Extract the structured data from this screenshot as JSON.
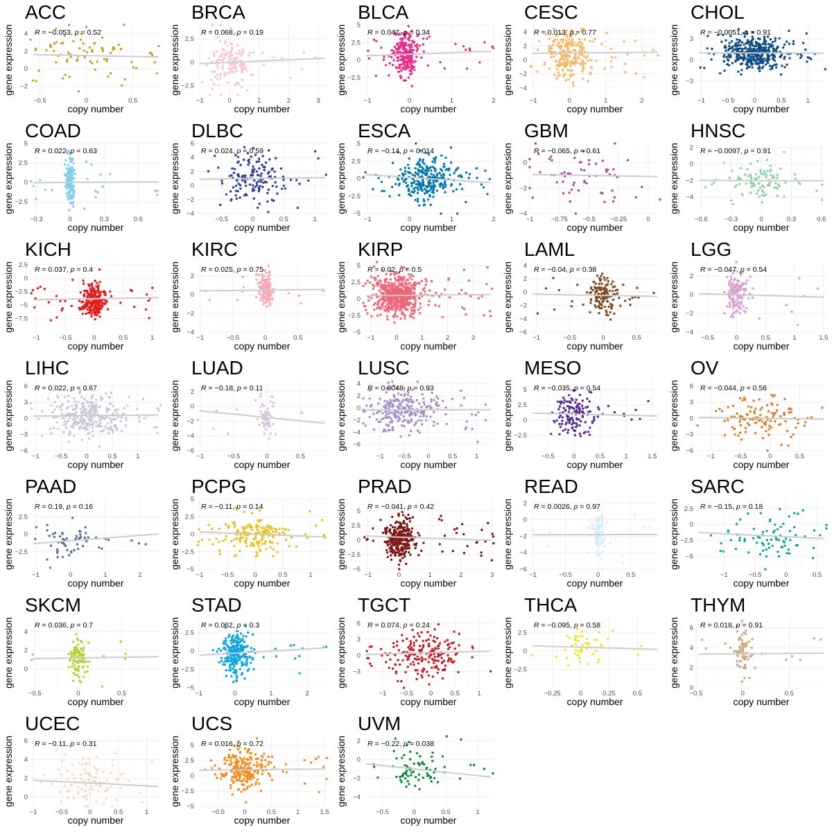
{
  "figure": {
    "x_label": "copy number",
    "y_label": "gene expression",
    "stat_prefix": "R = "
  },
  "chart_data": [
    {
      "type": "scatter",
      "title": "ACC",
      "color": "#C4A428",
      "r": -0.053,
      "p": "0.52",
      "n": 80,
      "xlim": [
        -0.6,
        0.8
      ],
      "ylim": [
        -3,
        5
      ],
      "xticks": [
        -0.5,
        0,
        0.5
      ],
      "yticks": [
        -2,
        0,
        2,
        4
      ],
      "x_center": 0.0,
      "x_spread": 0.3,
      "y_center": 1.5,
      "y_spread": 1.8
    },
    {
      "type": "scatter",
      "title": "BRCA",
      "color": "#F6C7D2",
      "r": 0.068,
      "p": "0.19",
      "n": 150,
      "xlim": [
        -1.1,
        3.3
      ],
      "ylim": [
        -3.5,
        4.0
      ],
      "xticks": [
        -1,
        0,
        1,
        2,
        3
      ],
      "yticks": [
        -2.5,
        0.0,
        2.5
      ],
      "x_center": 0.0,
      "x_spread": 0.4,
      "y_center": 0.0,
      "y_spread": 1.3
    },
    {
      "type": "scatter",
      "title": "BLCA",
      "color": "#E62D8B",
      "r": 0.047,
      "p": "0.34",
      "n": 250,
      "xlim": [
        -1.1,
        2.0
      ],
      "ylim": [
        -5,
        5
      ],
      "xticks": [
        -1,
        0,
        1,
        2
      ],
      "yticks": [
        -2.5,
        0.0,
        2.5,
        5.0
      ],
      "x_center": -0.1,
      "x_spread": 0.15,
      "y_center": 0.8,
      "y_spread": 1.5
    },
    {
      "type": "scatter",
      "title": "CESC",
      "color": "#F6B867",
      "r": 0.013,
      "p": "0.77",
      "n": 250,
      "xlim": [
        -1.1,
        2.5
      ],
      "ylim": [
        -5,
        5
      ],
      "xticks": [
        -1,
        0,
        1,
        2
      ],
      "yticks": [
        -4,
        -2,
        0,
        2,
        4
      ],
      "x_center": 0.0,
      "x_spread": 0.3,
      "y_center": 1.0,
      "y_spread": 1.6
    },
    {
      "type": "scatter",
      "title": "CHOL",
      "color": "#0E4C82",
      "r": -0.0051,
      "p": "0.91",
      "n": 400,
      "xlim": [
        -1.1,
        1.35
      ],
      "ylim": [
        -5,
        5
      ],
      "xticks": [
        -1.0,
        -0.5,
        0.0,
        0.5,
        1.0
      ],
      "yticks": [
        -3,
        0,
        3
      ],
      "x_center": 0.0,
      "x_spread": 0.3,
      "y_center": 1.0,
      "y_spread": 1.3
    },
    {
      "type": "scatter",
      "title": "COAD",
      "color": "#87CEEB",
      "r": 0.022,
      "p": "0.63",
      "n": 200,
      "xlim": [
        -0.35,
        0.8
      ],
      "ylim": [
        -4,
        5
      ],
      "xticks": [
        -0.3,
        0.0,
        0.3,
        0.6
      ],
      "yticks": [
        -2.5,
        0.0,
        2.5,
        5.0
      ],
      "x_center": 0.0,
      "x_spread": 0.02,
      "y_center": 0.0,
      "y_spread": 1.5
    },
    {
      "type": "scatter",
      "title": "DLBC",
      "color": "#2E3F94",
      "r": 0.024,
      "p": "0.59",
      "n": 150,
      "xlim": [
        -0.9,
        1.2
      ],
      "ylim": [
        -4,
        6
      ],
      "xticks": [
        -0.5,
        0.0,
        0.5,
        1.0
      ],
      "yticks": [
        -4,
        -2,
        0,
        2,
        4,
        6
      ],
      "x_center": 0.0,
      "x_spread": 0.25,
      "y_center": 1.0,
      "y_spread": 1.8
    },
    {
      "type": "scatter",
      "title": "ESCA",
      "color": "#0178A8",
      "r": -0.14,
      "p": "0.014",
      "n": 300,
      "xlim": [
        -1.1,
        2.0
      ],
      "ylim": [
        -5,
        5
      ],
      "xticks": [
        -1,
        0,
        1,
        2
      ],
      "yticks": [
        -5.0,
        -2.5,
        0.0,
        2.5,
        5.0
      ],
      "x_center": 0.4,
      "x_spread": 0.35,
      "y_center": 0.0,
      "y_spread": 1.5
    },
    {
      "type": "scatter",
      "title": "GBM",
      "color": "#AD47A6",
      "r": -0.065,
      "p": "0.61",
      "n": 60,
      "xlim": [
        -1.0,
        0.1
      ],
      "ylim": [
        -4,
        1.5
      ],
      "xticks": [
        -1.0,
        -0.75,
        -0.5,
        -0.25,
        0.0
      ],
      "yticks": [
        -4,
        -2,
        0
      ],
      "x_center": -0.55,
      "x_spread": 0.3,
      "y_center": -1.0,
      "y_spread": 1.2
    },
    {
      "type": "scatter",
      "title": "HNSC",
      "color": "#91D1A5",
      "r": -0.0097,
      "p": "0.91",
      "n": 100,
      "xlim": [
        -0.65,
        0.65
      ],
      "ylim": [
        -6,
        2.5
      ],
      "xticks": [
        -0.6,
        -0.3,
        0.0,
        0.3,
        0.6
      ],
      "yticks": [
        -4,
        -2,
        0,
        2
      ],
      "x_center": 0.0,
      "x_spread": 0.15,
      "y_center": -2.0,
      "y_spread": 1.2
    },
    {
      "type": "scatter",
      "title": "KICH",
      "color": "#E41A1C",
      "r": 0.037,
      "p": "0.4",
      "n": 250,
      "xlim": [
        -1.1,
        1.15
      ],
      "ylim": [
        -10,
        3
      ],
      "xticks": [
        -1.0,
        -0.5,
        0.0,
        0.5,
        1.0
      ],
      "yticks": [
        -7.5,
        -5.0,
        -2.5,
        0.0,
        2.5
      ],
      "x_center": 0.0,
      "x_spread": 0.1,
      "y_center": -3.8,
      "y_spread": 1.6
    },
    {
      "type": "scatter",
      "title": "KIRC",
      "color": "#F4A9B3",
      "r": 0.025,
      "p": "0.75",
      "n": 150,
      "xlim": [
        -1.05,
        0.95
      ],
      "ylim": [
        -4,
        3.5
      ],
      "xticks": [
        -1.0,
        -0.5,
        0.0,
        0.5
      ],
      "yticks": [
        -4,
        -2,
        0,
        2
      ],
      "x_center": 0.0,
      "x_spread": 0.05,
      "y_center": 0.5,
      "y_spread": 1.0
    },
    {
      "type": "scatter",
      "title": "KIRP",
      "color": "#EE6677",
      "r": 0.02,
      "p": "0.5",
      "n": 600,
      "xlim": [
        -1.3,
        3.8
      ],
      "ylim": [
        -5,
        5.5
      ],
      "xticks": [
        -1,
        0,
        1,
        2,
        3
      ],
      "yticks": [
        -5.0,
        -2.5,
        0.0,
        2.5,
        5.0
      ],
      "x_center": 0.0,
      "x_spread": 0.5,
      "y_center": 0.5,
      "y_spread": 1.6
    },
    {
      "type": "scatter",
      "title": "LAML",
      "color": "#7B4A1E",
      "r": -0.04,
      "p": "0.38",
      "n": 150,
      "xlim": [
        -1.1,
        0.85
      ],
      "ylim": [
        -6,
        4.5
      ],
      "xticks": [
        -1.0,
        -0.5,
        0.0,
        0.5
      ],
      "yticks": [
        -6,
        -4,
        -2,
        0,
        2,
        4
      ],
      "x_center": 0.0,
      "x_spread": 0.1,
      "y_center": -0.5,
      "y_spread": 1.4
    },
    {
      "type": "scatter",
      "title": "LGG",
      "color": "#D7A1C8",
      "r": -0.047,
      "p": "0.54",
      "n": 150,
      "xlim": [
        -0.7,
        1.55
      ],
      "ylim": [
        -4,
        3.5
      ],
      "xticks": [
        -0.5,
        0.0,
        0.5,
        1.0,
        1.5
      ],
      "yticks": [
        -4,
        -2,
        0,
        2
      ],
      "x_center": 0.0,
      "x_spread": 0.1,
      "y_center": 0.0,
      "y_spread": 1.2
    },
    {
      "type": "scatter",
      "title": "LIHC",
      "color": "#C8C8DC",
      "r": 0.022,
      "p": "0.67",
      "n": 300,
      "xlim": [
        -1.1,
        1.45
      ],
      "ylim": [
        -6,
        7
      ],
      "xticks": [
        -1.0,
        -0.5,
        0.0,
        0.5,
        1.0
      ],
      "yticks": [
        -6,
        -3,
        0,
        3,
        6
      ],
      "x_center": 0.0,
      "x_spread": 0.35,
      "y_center": 0.5,
      "y_spread": 2.0
    },
    {
      "type": "scatter",
      "title": "LUAD",
      "color": "#D2C2E2",
      "r": -0.18,
      "p": "0.11",
      "n": 60,
      "xlim": [
        -1.05,
        0.9
      ],
      "ylim": [
        -6,
        3.5
      ],
      "xticks": [
        -1.0,
        -0.5,
        0.0,
        0.5
      ],
      "yticks": [
        -6,
        -4,
        -2,
        0,
        2
      ],
      "x_center": 0.0,
      "x_spread": 0.05,
      "y_center": -1.5,
      "y_spread": 1.6
    },
    {
      "type": "scatter",
      "title": "LUSC",
      "color": "#A68FC6",
      "r": 0.0048,
      "p": "0.93",
      "n": 250,
      "xlim": [
        -1.35,
        1.35
      ],
      "ylim": [
        -7,
        4.5
      ],
      "xticks": [
        -1.0,
        -0.5,
        0.0,
        0.5,
        1.0
      ],
      "yticks": [
        -6,
        -4,
        -2,
        0,
        2,
        4
      ],
      "x_center": -0.5,
      "x_spread": 0.35,
      "y_center": -0.3,
      "y_spread": 1.8
    },
    {
      "type": "scatter",
      "title": "MESO",
      "color": "#5A2D91",
      "r": -0.035,
      "p": "0.54",
      "n": 150,
      "xlim": [
        -0.85,
        1.65
      ],
      "ylim": [
        -5,
        6.5
      ],
      "xticks": [
        -0.5,
        0.0,
        0.5,
        1.0,
        1.5
      ],
      "yticks": [
        -2.5,
        0.0,
        2.5,
        5.0
      ],
      "x_center": 0.0,
      "x_spread": 0.2,
      "y_center": 1.0,
      "y_spread": 1.8
    },
    {
      "type": "scatter",
      "title": "OV",
      "color": "#D97E27",
      "r": -0.044,
      "p": "0.56",
      "n": 120,
      "xlim": [
        -1.25,
        0.95
      ],
      "ylim": [
        -6,
        7
      ],
      "xticks": [
        -1.0,
        -0.5,
        0.0,
        0.5
      ],
      "yticks": [
        -6,
        -3,
        0,
        3,
        6
      ],
      "x_center": -0.1,
      "x_spread": 0.35,
      "y_center": 0.0,
      "y_spread": 2.0
    },
    {
      "type": "scatter",
      "title": "PAAD",
      "color": "#5B6F9E",
      "r": 0.19,
      "p": "0.16",
      "n": 60,
      "xlim": [
        -1.15,
        2.6
      ],
      "ylim": [
        -5,
        5
      ],
      "xticks": [
        -1,
        0,
        1,
        2
      ],
      "yticks": [
        -2.5,
        0.0,
        2.5
      ],
      "x_center": -0.2,
      "x_spread": 0.4,
      "y_center": -1.0,
      "y_spread": 1.3
    },
    {
      "type": "scatter",
      "title": "PCPG",
      "color": "#E6C21E",
      "r": -0.11,
      "p": "0.14",
      "n": 180,
      "xlim": [
        -1.05,
        1.3
      ],
      "ylim": [
        -5,
        5
      ],
      "xticks": [
        -1.0,
        -0.5,
        0.0,
        0.5,
        1.0
      ],
      "yticks": [
        -5.0,
        -2.5,
        0.0,
        2.5,
        5.0
      ],
      "x_center": 0.0,
      "x_spread": 0.3,
      "y_center": 0.0,
      "y_spread": 1.4
    },
    {
      "type": "scatter",
      "title": "PRAD",
      "color": "#7A1616",
      "r": -0.041,
      "p": "0.42",
      "n": 300,
      "xlim": [
        -1.15,
        3.05
      ],
      "ylim": [
        -5,
        7
      ],
      "xticks": [
        -1,
        0,
        1,
        2,
        3
      ],
      "yticks": [
        -5.0,
        -2.5,
        0.0,
        2.5,
        5.0
      ],
      "x_center": 0.0,
      "x_spread": 0.25,
      "y_center": 0.5,
      "y_spread": 1.8
    },
    {
      "type": "scatter",
      "title": "READ",
      "color": "#D6ECF8",
      "r": 0.0026,
      "p": "0.97",
      "n": 100,
      "xlim": [
        -1.05,
        0.95
      ],
      "ylim": [
        -6,
        2.5
      ],
      "xticks": [
        -1.0,
        -0.5,
        0.0,
        0.5
      ],
      "yticks": [
        -6,
        -4,
        -2,
        0,
        2
      ],
      "x_center": 0.0,
      "x_spread": 0.05,
      "y_center": -1.8,
      "y_spread": 1.3
    },
    {
      "type": "scatter",
      "title": "SARC",
      "color": "#0AA39A",
      "r": -0.15,
      "p": "0.18",
      "n": 80,
      "xlim": [
        -1.45,
        0.65
      ],
      "ylim": [
        -7,
        4
      ],
      "xticks": [
        -1.0,
        -0.5,
        0.0,
        0.5
      ],
      "yticks": [
        -5.0,
        -2.5,
        0.0,
        2.5
      ],
      "x_center": -0.2,
      "x_spread": 0.4,
      "y_center": -1.8,
      "y_spread": 2.0
    },
    {
      "type": "scatter",
      "title": "SKCM",
      "color": "#B4D238",
      "r": 0.036,
      "p": "0.7",
      "n": 100,
      "xlim": [
        -0.55,
        0.95
      ],
      "ylim": [
        -2,
        5.5
      ],
      "xticks": [
        -0.5,
        0.0,
        0.5
      ],
      "yticks": [
        0,
        2,
        4
      ],
      "x_center": 0.0,
      "x_spread": 0.05,
      "y_center": 1.2,
      "y_spread": 1.2
    },
    {
      "type": "scatter",
      "title": "STAD",
      "color": "#0EA4E0",
      "r": 0.062,
      "p": "0.3",
      "n": 250,
      "xlim": [
        -1.05,
        2.55
      ],
      "ylim": [
        -5,
        4.5
      ],
      "xticks": [
        -1,
        0,
        1,
        2
      ],
      "yticks": [
        -5.0,
        -2.5,
        0.0,
        2.5
      ],
      "x_center": 0.0,
      "x_spread": 0.2,
      "y_center": -0.3,
      "y_spread": 1.5
    },
    {
      "type": "scatter",
      "title": "TGCT",
      "color": "#C31E2A",
      "r": 0.074,
      "p": "0.24",
      "n": 200,
      "xlim": [
        -1.4,
        1.3
      ],
      "ylim": [
        -6,
        7
      ],
      "xticks": [
        -1.0,
        -0.5,
        0.0,
        0.5,
        1.0
      ],
      "yticks": [
        -3,
        0,
        3,
        6
      ],
      "x_center": -0.1,
      "x_spread": 0.4,
      "y_center": 0.5,
      "y_spread": 2.0
    },
    {
      "type": "scatter",
      "title": "THCA",
      "color": "#F0E51E",
      "r": -0.095,
      "p": "0.58",
      "n": 50,
      "xlim": [
        -0.45,
        0.7
      ],
      "ylim": [
        -5,
        4.5
      ],
      "xticks": [
        -0.25,
        0.0,
        0.25,
        0.5
      ],
      "yticks": [
        -2.5,
        0.0,
        2.5
      ],
      "x_center": 0.0,
      "x_spread": 0.1,
      "y_center": 0.5,
      "y_spread": 1.4
    },
    {
      "type": "scatter",
      "title": "THYM",
      "color": "#C9A87E",
      "r": 0.018,
      "p": "0.91",
      "n": 80,
      "xlim": [
        -0.5,
        0.9
      ],
      "ylim": [
        0,
        7
      ],
      "xticks": [
        -0.5,
        0.0,
        0.5
      ],
      "yticks": [
        0,
        2,
        4,
        6
      ],
      "x_center": 0.0,
      "x_spread": 0.05,
      "y_center": 3.4,
      "y_spread": 1.2
    },
    {
      "type": "scatter",
      "title": "UCEC",
      "color": "#F9D9BC",
      "r": -0.11,
      "p": "0.31",
      "n": 100,
      "xlim": [
        -1.05,
        1.25
      ],
      "ylim": [
        -1,
        6.5
      ],
      "xticks": [
        -1.0,
        -0.5,
        0.0,
        0.5,
        1.0
      ],
      "yticks": [
        0,
        2,
        4,
        6
      ],
      "x_center": 0.0,
      "x_spread": 0.3,
      "y_center": 1.5,
      "y_spread": 1.3
    },
    {
      "type": "scatter",
      "title": "UCS",
      "color": "#F28C1F",
      "r": 0.016,
      "p": "0.72",
      "n": 250,
      "xlim": [
        -0.9,
        1.55
      ],
      "ylim": [
        -5,
        6.5
      ],
      "xticks": [
        -0.5,
        0.0,
        0.5,
        1.0,
        1.5
      ],
      "yticks": [
        -5.0,
        -2.5,
        0.0,
        2.5,
        5.0
      ],
      "x_center": 0.0,
      "x_spread": 0.2,
      "y_center": 1.0,
      "y_spread": 1.6
    },
    {
      "type": "scatter",
      "title": "UVM",
      "color": "#0B8A3C",
      "r": -0.22,
      "p": "0.038",
      "n": 80,
      "xlim": [
        -0.8,
        1.25
      ],
      "ylim": [
        -5,
        2.5
      ],
      "xticks": [
        -0.5,
        0.0,
        0.5,
        1.0
      ],
      "yticks": [
        -4,
        -2,
        0,
        2
      ],
      "x_center": 0.0,
      "x_spread": 0.25,
      "y_center": -1.0,
      "y_spread": 1.3
    }
  ]
}
